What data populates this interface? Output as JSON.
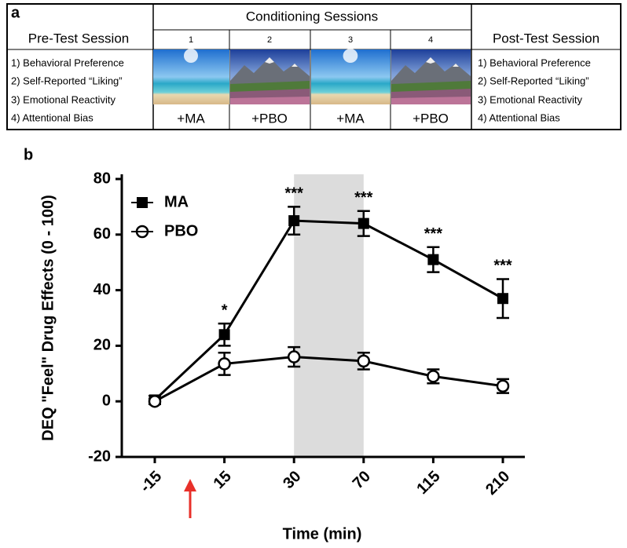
{
  "panel_a": {
    "label": "a",
    "pre_test": {
      "title": "Pre-Test Session",
      "items": [
        "1) Behavioral Preference",
        "2) Self-Reported “Liking”",
        "3) Emotional Reactivity",
        "4) Attentional Bias"
      ]
    },
    "conditioning": {
      "title": "Conditioning Sessions",
      "sessions": [
        {
          "number": "1",
          "drug": "+MA"
        },
        {
          "number": "2",
          "drug": "+PBO"
        },
        {
          "number": "3",
          "drug": "+MA"
        },
        {
          "number": "4",
          "drug": "+PBO"
        }
      ]
    },
    "post_test": {
      "title": "Post-Test Session",
      "items": [
        "1) Behavioral Preference",
        "2) Self-Reported “Liking”",
        "3) Emotional Reactivity",
        "4) Attentional Bias"
      ]
    }
  },
  "chart_data": {
    "type": "line",
    "panel_label": "b",
    "x_label": "Time (min)",
    "y_label": "DEQ \"Feel\" Drug Effects (0 - 100)",
    "categories": [
      "-15",
      "15",
      "30",
      "70",
      "115",
      "210"
    ],
    "ylim": [
      -20,
      80
    ],
    "yticks": [
      -20,
      0,
      20,
      40,
      60,
      80
    ],
    "shaded": {
      "from": "30",
      "to": "70",
      "color": "#dcdcdc"
    },
    "legend": "upper left",
    "series": [
      {
        "name": "MA",
        "color": "#000000",
        "marker": "square",
        "values": [
          0.5,
          24,
          65,
          64,
          51,
          37
        ],
        "errors": [
          1.5,
          4,
          5,
          4.5,
          4.5,
          7
        ],
        "significance": [
          null,
          "*",
          "***",
          "***",
          "***",
          "***"
        ]
      },
      {
        "name": "PBO",
        "color": "#000000",
        "marker": "open-circle",
        "values": [
          0,
          13.5,
          16,
          14.5,
          9,
          5.5
        ],
        "errors": [
          1,
          4,
          3.5,
          3,
          2.5,
          2.5
        ]
      }
    ]
  }
}
